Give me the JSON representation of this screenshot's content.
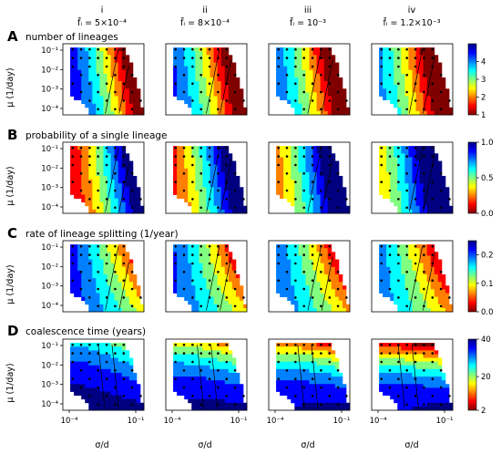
{
  "columns": [
    {
      "num": "i",
      "f": "f̄ᵢ = 5×10⁻⁴"
    },
    {
      "num": "ii",
      "f": "f̄ᵢ = 8×10⁻⁴"
    },
    {
      "num": "iii",
      "f": "f̄ᵢ = 10⁻³"
    },
    {
      "num": "iv",
      "f": "f̄ᵢ = 1.2×10⁻³"
    }
  ],
  "axes": {
    "xlabel": "σ/d",
    "ylabel": "μ (1/day)",
    "xticks": [
      "10⁻⁴",
      "10⁻¹"
    ],
    "yticks": [
      "10⁻¹",
      "10⁻²",
      "10⁻³",
      "10⁻⁴"
    ]
  },
  "chart_data": [
    {
      "type": "heatmap",
      "panel": "A",
      "title": "number of lineages",
      "xscale": "log",
      "yscale": "log",
      "colorbar": {
        "min": 1,
        "max": 5,
        "ticks": [
          "1",
          "2",
          "3",
          "4"
        ],
        "colormap": "jet"
      },
      "contour_levels": [
        1.5,
        2,
        3,
        4
      ],
      "columns_value_shift": [
        0,
        0.12,
        0.2,
        0.3
      ],
      "colors": {
        "low": "#7f0000",
        "high": "#00007f"
      }
    },
    {
      "type": "heatmap",
      "panel": "B",
      "title": "probability of a single lineage",
      "xscale": "log",
      "yscale": "log",
      "colorbar": {
        "min": 0,
        "max": 1,
        "ticks": [
          "0.0",
          "0.5",
          "1.0"
        ],
        "colormap": "jet"
      },
      "contour_levels": [
        0.2,
        0.4,
        0.6,
        0.8
      ],
      "columns_value_shift": [
        0,
        0.1,
        0.2,
        0.3
      ],
      "colors": {
        "low": "#7f0000",
        "high": "#00007f"
      }
    },
    {
      "type": "heatmap",
      "panel": "C",
      "title": "rate of lineage splitting (1/year)",
      "xscale": "log",
      "yscale": "log",
      "colorbar": {
        "min": 0,
        "max": 0.25,
        "ticks": [
          "0.0",
          "0.1",
          "0.2"
        ],
        "colormap": "jet"
      },
      "contour_levels": [
        0.05,
        0.1,
        0.15
      ],
      "columns_value_shift": [
        0,
        0.12,
        0.2,
        0.3
      ],
      "colors": {
        "low": "#7f0000",
        "high": "#00007f"
      }
    },
    {
      "type": "heatmap",
      "panel": "D",
      "title": "coalescence time (years)",
      "xscale": "log",
      "yscale": "log",
      "colorbar": {
        "min": 2,
        "max": 40,
        "ticks": [
          "2",
          "20",
          "40"
        ],
        "colormap": "jet"
      },
      "contour_levels": [
        10,
        20,
        30
      ],
      "columns_value_shift": [
        0,
        0.25,
        0.4,
        0.55
      ],
      "colors": {
        "low": "#7f0000",
        "high": "#00007f"
      }
    }
  ]
}
